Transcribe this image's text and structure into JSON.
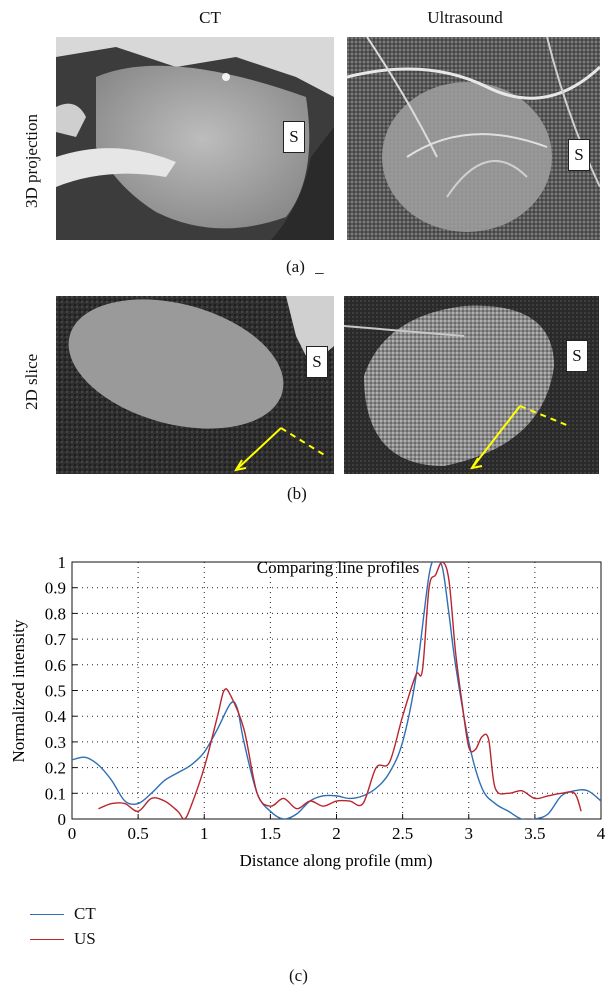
{
  "figure_a": {
    "col_labels": [
      "CT",
      "Ultrasound"
    ],
    "row_label": "3D projection",
    "marker": "S",
    "sublabel": "(a)",
    "stray_mark": "_"
  },
  "figure_b": {
    "row_label": "2D slice",
    "marker": "S",
    "sublabel": "(b)"
  },
  "figure_c": {
    "sublabel": "(c)"
  },
  "colors": {
    "ct": "#2e6fb5",
    "us": "#b8262e",
    "arrow": "#ffff00"
  },
  "chart_data": {
    "type": "line",
    "title": "Comparing line profiles",
    "xlabel": "Distance along profile (mm)",
    "ylabel": "Normalized intensity",
    "xlim": [
      0,
      4
    ],
    "ylim": [
      0,
      1
    ],
    "xticks": [
      "0",
      "0.5",
      "1",
      "1.5",
      "2",
      "2.5",
      "3",
      "3.5",
      "4"
    ],
    "yticks": [
      "0",
      "0.1",
      "0.2",
      "0.3",
      "0.4",
      "0.5",
      "0.6",
      "0.7",
      "0.8",
      "0.9",
      "1"
    ],
    "grid": true,
    "legend": "below",
    "series": [
      {
        "name": "CT",
        "x": [
          0,
          0.1,
          0.2,
          0.3,
          0.4,
          0.5,
          0.6,
          0.7,
          0.8,
          0.9,
          1.0,
          1.1,
          1.2,
          1.25,
          1.3,
          1.4,
          1.5,
          1.6,
          1.7,
          1.8,
          1.9,
          2.0,
          2.1,
          2.2,
          2.3,
          2.4,
          2.5,
          2.6,
          2.7,
          2.75,
          2.8,
          2.85,
          2.9,
          3.0,
          3.1,
          3.2,
          3.3,
          3.4,
          3.5,
          3.6,
          3.7,
          3.8,
          3.9,
          4.0
        ],
        "values": [
          0.23,
          0.24,
          0.21,
          0.15,
          0.07,
          0.06,
          0.1,
          0.15,
          0.18,
          0.21,
          0.26,
          0.35,
          0.45,
          0.43,
          0.3,
          0.1,
          0.03,
          0.0,
          0.02,
          0.07,
          0.09,
          0.09,
          0.08,
          0.09,
          0.12,
          0.18,
          0.3,
          0.55,
          0.95,
          1.0,
          0.98,
          0.8,
          0.6,
          0.3,
          0.12,
          0.06,
          0.03,
          0.0,
          0.0,
          0.02,
          0.09,
          0.11,
          0.11,
          0.07
        ]
      },
      {
        "name": "US",
        "x": [
          0.2,
          0.3,
          0.4,
          0.5,
          0.6,
          0.7,
          0.8,
          0.85,
          0.9,
          1.0,
          1.1,
          1.15,
          1.2,
          1.3,
          1.4,
          1.5,
          1.6,
          1.7,
          1.8,
          1.9,
          2.0,
          2.1,
          2.2,
          2.3,
          2.4,
          2.5,
          2.6,
          2.65,
          2.7,
          2.75,
          2.8,
          2.85,
          2.9,
          2.95,
          3.0,
          3.05,
          3.1,
          3.15,
          3.2,
          3.3,
          3.4,
          3.5,
          3.6,
          3.7,
          3.8,
          3.85
        ],
        "values": [
          0.04,
          0.06,
          0.06,
          0.03,
          0.08,
          0.07,
          0.03,
          0.0,
          0.05,
          0.2,
          0.4,
          0.5,
          0.48,
          0.35,
          0.1,
          0.05,
          0.08,
          0.04,
          0.07,
          0.05,
          0.07,
          0.07,
          0.06,
          0.2,
          0.22,
          0.4,
          0.56,
          0.58,
          0.9,
          0.95,
          1.0,
          0.93,
          0.65,
          0.45,
          0.28,
          0.27,
          0.32,
          0.31,
          0.12,
          0.1,
          0.11,
          0.08,
          0.09,
          0.1,
          0.1,
          0.03
        ]
      }
    ]
  }
}
